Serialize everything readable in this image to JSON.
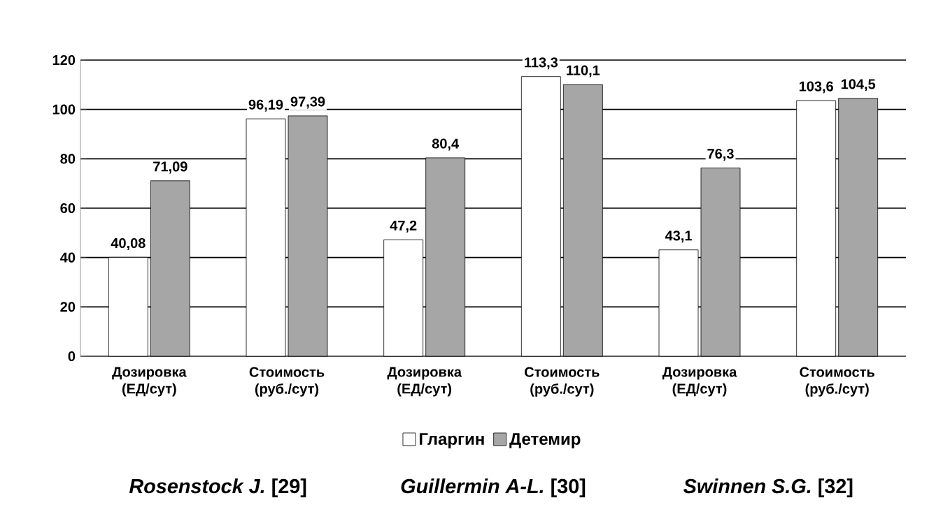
{
  "chart_data": {
    "type": "bar",
    "categories": [
      "Дозировка (ЕД/сут)",
      "Стоимость (руб./сут)",
      "Дозировка (ЕД/сут)",
      "Стоимость (руб./сут)",
      "Дозировка (ЕД/сут)",
      "Стоимость (руб./сут)"
    ],
    "series": [
      {
        "name": "Гларгин",
        "color": "#ffffff",
        "values": [
          40.08,
          96.19,
          47.2,
          113.3,
          43.1,
          103.6
        ],
        "value_labels": [
          "40,08",
          "96,19",
          "47,2",
          "113,3",
          "43,1",
          "103,6"
        ]
      },
      {
        "name": "Детемир",
        "color": "#a6a6a6",
        "values": [
          71.09,
          97.39,
          80.4,
          110.1,
          76.3,
          104.5
        ],
        "value_labels": [
          "71,09",
          "97,39",
          "80,4",
          "110,1",
          "76,3",
          "104,5"
        ]
      }
    ],
    "ylim": [
      0,
      120
    ],
    "yticks": [
      0,
      20,
      40,
      60,
      80,
      100,
      120
    ],
    "grid": "y",
    "legend": "bottom",
    "annotations": [
      "*Rosenstock J.* [29]",
      "*Guillermin A-L.* [30]",
      "*Swinnen S.G.* [32]"
    ]
  }
}
